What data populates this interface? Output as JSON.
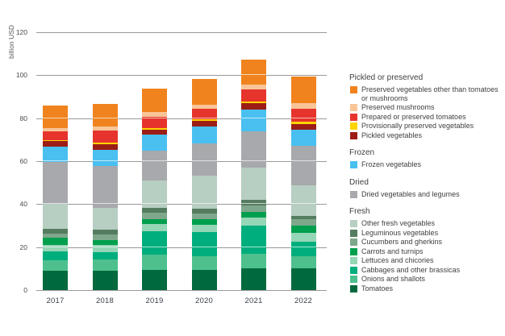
{
  "chart_data": {
    "type": "bar",
    "stacked": true,
    "title": "",
    "ylabel": "billion USD",
    "xlabel": "",
    "ylim": [
      0,
      120
    ],
    "yticks": [
      0,
      20,
      40,
      60,
      80,
      100,
      120
    ],
    "grid": true,
    "legend_position": "right",
    "categories": [
      "2017",
      "2018",
      "2019",
      "2020",
      "2021",
      "2022"
    ],
    "series": [
      {
        "name": "Tomatoes",
        "color": "#006A3E",
        "values": [
          9.0,
          9.1,
          9.4,
          9.4,
          10.1,
          10.0
        ]
      },
      {
        "name": "Onions and shallots",
        "color": "#4DC08E",
        "values": [
          5.0,
          5.3,
          7.1,
          6.5,
          6.9,
          5.6
        ]
      },
      {
        "name": "Cabbages and other brassicas",
        "color": "#00AE7D",
        "values": [
          4.1,
          3.1,
          11.0,
          11.2,
          13.1,
          6.9
        ]
      },
      {
        "name": "Lettuces and chicories",
        "color": "#95D6B6",
        "values": [
          3.0,
          3.4,
          3.4,
          3.3,
          3.5,
          4.1
        ]
      },
      {
        "name": "Carrots and turnips",
        "color": "#009F4D",
        "values": [
          3.2,
          2.5,
          2.2,
          2.7,
          2.8,
          3.4
        ]
      },
      {
        "name": "Cucumbers and gherkins",
        "color": "#7FA78C",
        "values": [
          2.0,
          2.5,
          2.8,
          2.5,
          3.1,
          3.0
        ]
      },
      {
        "name": "Leguminous vegetables",
        "color": "#557C5F",
        "values": [
          2.0,
          2.2,
          2.5,
          2.3,
          2.5,
          1.5
        ]
      },
      {
        "name": "Other fresh vegetables",
        "color": "#B7CEC2",
        "values": [
          11.9,
          10.3,
          12.5,
          15.5,
          15.0,
          14.3
        ]
      },
      {
        "name": "Dried vegetables and legumes",
        "color": "#A7A9AC",
        "values": [
          19.6,
          19.4,
          14.1,
          15.0,
          16.9,
          18.2
        ]
      },
      {
        "name": "Frozen vegetables",
        "color": "#49C0F0",
        "values": [
          6.9,
          7.3,
          7.5,
          7.9,
          10.2,
          7.5
        ]
      },
      {
        "name": "Pickled vegetables",
        "color": "#9C1D15",
        "values": [
          2.7,
          2.8,
          2.1,
          2.5,
          3.0,
          2.9
        ]
      },
      {
        "name": "Provisionally preserved vegetables",
        "color": "#FFD400",
        "values": [
          0.3,
          0.7,
          0.8,
          0.7,
          0.8,
          0.9
        ]
      },
      {
        "name": "Prepared or preserved tomatoes",
        "color": "#E6342C",
        "values": [
          4.0,
          5.6,
          5.2,
          5.0,
          5.4,
          5.9
        ]
      },
      {
        "name": "Preserved mushrooms",
        "color": "#F9C598",
        "values": [
          1.6,
          1.9,
          2.2,
          1.9,
          2.2,
          2.9
        ]
      },
      {
        "name": "Preserved vegetables other than tomatoes or mushrooms",
        "color": "#F0831E",
        "values": [
          10.6,
          10.7,
          10.8,
          11.9,
          11.6,
          12.1
        ]
      }
    ],
    "legend_groups": [
      {
        "label": "Pickled or preserved",
        "items": [
          "Preserved vegetables other than tomatoes or mushrooms",
          "Preserved mushrooms",
          "Prepared or preserved tomatoes",
          "Provisionally preserved vegetables",
          "Pickled vegetables"
        ]
      },
      {
        "label": "Frozen",
        "items": [
          "Frozen vegetables"
        ]
      },
      {
        "label": "Dried",
        "items": [
          "Dried vegetables and legumes"
        ]
      },
      {
        "label": "Fresh",
        "items": [
          "Other fresh vegetables",
          "Leguminous vegetables",
          "Cucumbers and gherkins",
          "Carrots and turnips",
          "Lettuces and chicories",
          "Cabbages and other brassicas",
          "Onions and shallots",
          "Tomatoes"
        ]
      }
    ]
  }
}
